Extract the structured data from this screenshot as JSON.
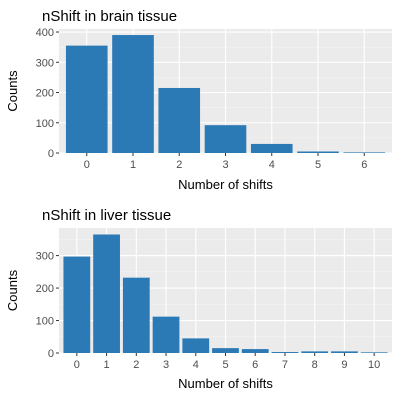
{
  "colors": {
    "bar": "#2b79b5",
    "panel_background": "#ebebeb",
    "grid_major": "#ffffff",
    "grid_minor": "#f4f4f4",
    "tick": "#333333"
  },
  "chart_data": [
    {
      "type": "bar",
      "title": "nShift in brain tissue",
      "xlabel": "Number of shifts",
      "ylabel": "Counts",
      "categories": [
        "0",
        "1",
        "2",
        "3",
        "4",
        "5",
        "6"
      ],
      "values": [
        355,
        390,
        215,
        92,
        30,
        5,
        2
      ],
      "y_ticks": [
        0,
        100,
        200,
        300,
        400
      ],
      "ylim": [
        0,
        410
      ],
      "grid": true,
      "legend": "none"
    },
    {
      "type": "bar",
      "title": "nShift in liver tissue",
      "xlabel": "Number of shifts",
      "ylabel": "Counts",
      "categories": [
        "0",
        "1",
        "2",
        "3",
        "4",
        "5",
        "6",
        "7",
        "8",
        "9",
        "10"
      ],
      "values": [
        297,
        365,
        232,
        112,
        45,
        15,
        12,
        3,
        5,
        5,
        2
      ],
      "y_ticks": [
        0,
        100,
        200,
        300
      ],
      "ylim": [
        0,
        385
      ],
      "grid": true,
      "legend": "none"
    }
  ]
}
